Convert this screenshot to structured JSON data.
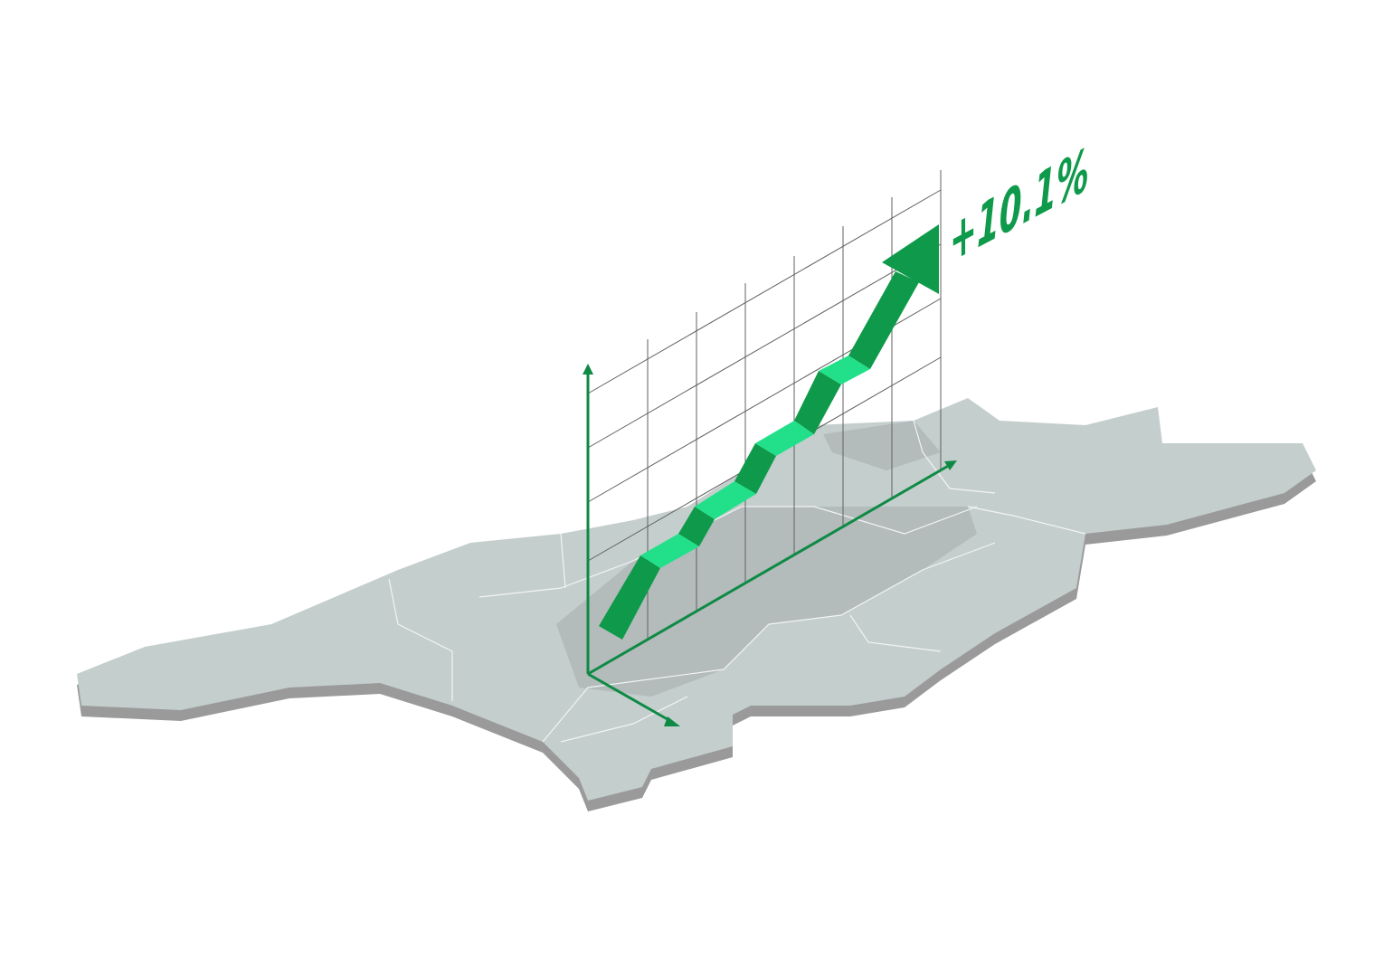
{
  "growth_label": "+10.1%",
  "colors": {
    "map_fill": "#c4cecd",
    "map_shade": "#b3bbbb",
    "map_shadow": "#9a9a9a",
    "region_border": "#f2f4f4",
    "grid": "#606060",
    "arrow_dark": "#0e9a4a",
    "arrow_light": "#22e08a",
    "axis": "#0e8a45",
    "label": "#0e9a4a"
  }
}
